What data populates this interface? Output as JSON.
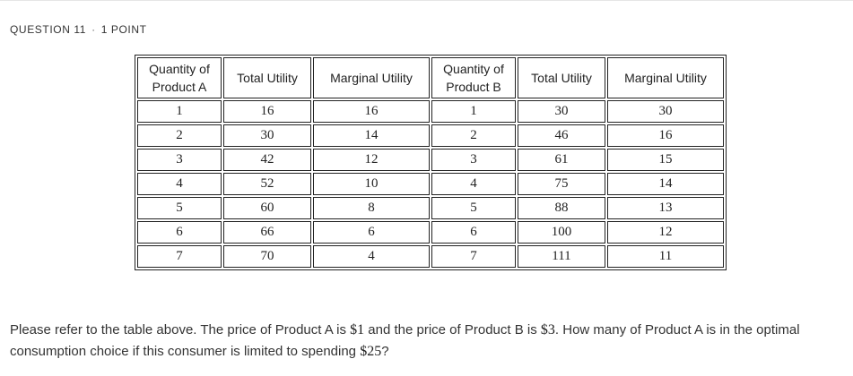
{
  "header": {
    "question_label": "QUESTION 11",
    "separator": "·",
    "points_label": "1 POINT"
  },
  "table": {
    "columns": [
      {
        "line1": "Quantity of",
        "line2": "Product A"
      },
      {
        "line1": "Total Utility",
        "line2": ""
      },
      {
        "line1": "Marginal Utility",
        "line2": ""
      },
      {
        "line1": "Quantity of",
        "line2": "Product B"
      },
      {
        "line1": "Total Utility",
        "line2": ""
      },
      {
        "line1": "Marginal Utility",
        "line2": ""
      }
    ],
    "rows": [
      [
        "1",
        "16",
        "16",
        "1",
        "30",
        "30"
      ],
      [
        "2",
        "30",
        "14",
        "2",
        "46",
        "16"
      ],
      [
        "3",
        "42",
        "12",
        "3",
        "61",
        "15"
      ],
      [
        "4",
        "52",
        "10",
        "4",
        "75",
        "14"
      ],
      [
        "5",
        "60",
        "8",
        "5",
        "88",
        "13"
      ],
      [
        "6",
        "66",
        "6",
        "6",
        "100",
        "12"
      ],
      [
        "7",
        "70",
        "4",
        "7",
        "111",
        "11"
      ]
    ]
  },
  "question": {
    "part1": "Please refer to the table above. The price of Product A is ",
    "price_a": "$1",
    "part2": " and the price of Product B is ",
    "price_b": "$3",
    "part3": ". How many of Product A is in the optimal consumption choice if this consumer is limited to spending ",
    "budget": "$25",
    "part4": "?"
  }
}
